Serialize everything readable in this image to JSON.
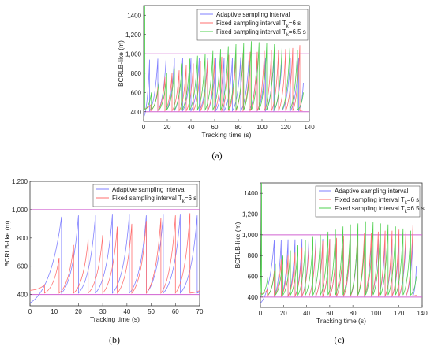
{
  "charts": [
    {
      "type": "line",
      "panel_label": "(a)",
      "xlabel": "Tracking time (s)",
      "ylabel": "BCRLB-like (m)",
      "xlim": [
        0,
        140
      ],
      "ylim": [
        300,
        1500
      ],
      "xticks": [
        "0",
        "20",
        "40",
        "60",
        "80",
        "100",
        "120",
        "140"
      ],
      "yticks": [
        "400",
        "600",
        "800",
        "1,000",
        "1,200",
        "1400"
      ],
      "ytick_values": [
        400,
        600,
        800,
        1000,
        1200,
        1400
      ],
      "reference_lines": [
        1000,
        400
      ],
      "reference_color": "#d060d0",
      "legend": [
        {
          "label": "Adaptive sampling interval",
          "sub": "",
          "suffix": "",
          "color": "#7f7fff"
        },
        {
          "label": "Fixed sampling interval T",
          "sub": "k",
          "suffix": "=6 s",
          "color": "#ff6f6f"
        },
        {
          "label": "Fixed sampling interval T",
          "sub": "k",
          "suffix": "=6.5 s",
          "color": "#4fd04f"
        }
      ],
      "series": [
        {
          "color": "#7f7fff",
          "start_time": 0,
          "start_value": 340,
          "peaks": [
            [
              5,
              940
            ],
            [
              12,
              950
            ],
            [
              19,
              955
            ],
            [
              26,
              960
            ],
            [
              33,
              960
            ],
            [
              40,
              955
            ],
            [
              47,
              960
            ],
            [
              54,
              960
            ],
            [
              61,
              960
            ],
            [
              68,
              960
            ],
            [
              75,
              960
            ],
            [
              82,
              965
            ],
            [
              89,
              960
            ],
            [
              96,
              960
            ],
            [
              103,
              960
            ],
            [
              110,
              960
            ],
            [
              117,
              960
            ],
            [
              124,
              960
            ],
            [
              131,
              960
            ]
          ],
          "reset_value": 410,
          "end": [
            135,
            700
          ]
        },
        {
          "color": "#ff6f6f",
          "start_time": 0,
          "start_value": 430,
          "peaks": [
            [
              6,
              470
            ],
            [
              12,
              650
            ],
            [
              18,
              760
            ],
            [
              24,
              800
            ],
            [
              30,
              830
            ],
            [
              36,
              880
            ],
            [
              42,
              900
            ],
            [
              48,
              920
            ],
            [
              54,
              940
            ],
            [
              60,
              960
            ],
            [
              66,
              970
            ],
            [
              72,
              990
            ],
            [
              78,
              1000
            ],
            [
              84,
              1010
            ],
            [
              90,
              1020
            ],
            [
              96,
              1020
            ],
            [
              102,
              1030
            ],
            [
              108,
              1040
            ],
            [
              114,
              1040
            ],
            [
              120,
              1050
            ],
            [
              126,
              1060
            ],
            [
              132,
              1090
            ]
          ],
          "reset_value": 410,
          "end": [
            135,
            420
          ]
        },
        {
          "color": "#4fd04f",
          "start_time": 0,
          "start_value": 450,
          "peaks": [
            [
              1,
              1500
            ],
            [
              6.5,
              600
            ],
            [
              13,
              720
            ],
            [
              19.5,
              800
            ],
            [
              26,
              850
            ],
            [
              32.5,
              900
            ],
            [
              39,
              950
            ],
            [
              45.5,
              980
            ],
            [
              52,
              1000
            ],
            [
              58.5,
              1030
            ],
            [
              65,
              1050
            ],
            [
              71.5,
              1080
            ],
            [
              78,
              1100
            ],
            [
              84.5,
              1110
            ],
            [
              91,
              1130
            ],
            [
              97.5,
              1120
            ],
            [
              104,
              1110
            ],
            [
              110.5,
              1100
            ],
            [
              117,
              1080
            ],
            [
              123.5,
              1060
            ],
            [
              130,
              1040
            ]
          ],
          "reset_value": 420,
          "end": [
            135,
            600
          ]
        }
      ]
    },
    {
      "type": "line",
      "panel_label": "(b)",
      "xlabel": "Tracking time (s)",
      "ylabel": "BCRLB-like (m)",
      "xlim": [
        0,
        70
      ],
      "ylim": [
        320,
        1200
      ],
      "xticks": [
        "0",
        "10",
        "20",
        "30",
        "40",
        "50",
        "60",
        "70"
      ],
      "yticks": [
        "400",
        "600",
        "800",
        "1,000",
        "1,200"
      ],
      "ytick_values": [
        400,
        600,
        800,
        1000,
        1200
      ],
      "reference_lines": [
        1000,
        400
      ],
      "reference_color": "#d060d0",
      "legend": [
        {
          "label": "Adaptive sampling interval",
          "sub": "",
          "suffix": "",
          "color": "#7f7fff"
        },
        {
          "label": "Fixed sampling interval T",
          "sub": "k",
          "suffix": "=6 s",
          "color": "#ff6f6f"
        }
      ],
      "series": [
        {
          "color": "#7f7fff",
          "start_time": 0,
          "start_value": 340,
          "peaks": [
            [
              13,
              950
            ],
            [
              20,
              960
            ],
            [
              27,
              960
            ],
            [
              34,
              965
            ],
            [
              41,
              965
            ],
            [
              48,
              960
            ],
            [
              55,
              965
            ],
            [
              62,
              965
            ],
            [
              69,
              960
            ]
          ],
          "reset_value": 410,
          "end": [
            70,
            430
          ]
        },
        {
          "color": "#ff6f6f",
          "start_time": 0,
          "start_value": 430,
          "peaks": [
            [
              6,
              470
            ],
            [
              12,
              660
            ],
            [
              18,
              750
            ],
            [
              24,
              790
            ],
            [
              30,
              820
            ],
            [
              36,
              880
            ],
            [
              42,
              900
            ],
            [
              48,
              920
            ],
            [
              54,
              940
            ],
            [
              60,
              960
            ],
            [
              66,
              975
            ]
          ],
          "reset_value": 410,
          "end": [
            70,
            430
          ]
        }
      ]
    },
    {
      "type": "line",
      "panel_label": "(c)",
      "xlabel": "Tracking time (s)",
      "ylabel": "BCRLB-like (m)",
      "xlim": [
        0,
        140
      ],
      "ylim": [
        300,
        1500
      ],
      "xticks": [
        "0",
        "20",
        "40",
        "60",
        "80",
        "100",
        "120",
        "140"
      ],
      "yticks": [
        "400",
        "600",
        "800",
        "1,000",
        "1,200",
        "1400"
      ],
      "ytick_values": [
        400,
        600,
        800,
        1000,
        1200,
        1400
      ],
      "reference_lines": [
        1000,
        400
      ],
      "reference_color": "#d060d0",
      "legend": [
        {
          "label": "Adaptive sampling interval",
          "sub": "",
          "suffix": "",
          "color": "#7f7fff"
        },
        {
          "label": "Fixed sampling interval T",
          "sub": "k",
          "suffix": "=6 s",
          "color": "#ff6f6f"
        },
        {
          "label": "Fixed sampling interval T",
          "sub": "k",
          "suffix": "=6.5 s",
          "color": "#4fd04f"
        }
      ],
      "series": [
        {
          "color": "#7f7fff",
          "start_time": 0,
          "start_value": 340,
          "peaks": [
            [
              12,
              950
            ],
            [
              18,
              950
            ],
            [
              24,
              955
            ],
            [
              30,
              955
            ],
            [
              36,
              960
            ],
            [
              42,
              960
            ],
            [
              48,
              960
            ],
            [
              54,
              960
            ],
            [
              60,
              960
            ],
            [
              66,
              960
            ],
            [
              72,
              960
            ],
            [
              78,
              960
            ],
            [
              84,
              960
            ],
            [
              90,
              960
            ],
            [
              96,
              960
            ],
            [
              102,
              960
            ],
            [
              108,
              960
            ],
            [
              114,
              960
            ],
            [
              120,
              960
            ],
            [
              126,
              960
            ],
            [
              132,
              960
            ]
          ],
          "reset_value": 410,
          "end": [
            135,
            700
          ]
        },
        {
          "color": "#ff6f6f",
          "start_time": 0,
          "start_value": 430,
          "peaks": [
            [
              6,
              470
            ],
            [
              12,
              650
            ],
            [
              18,
              760
            ],
            [
              24,
              800
            ],
            [
              30,
              830
            ],
            [
              36,
              880
            ],
            [
              42,
              900
            ],
            [
              48,
              920
            ],
            [
              54,
              940
            ],
            [
              60,
              960
            ],
            [
              66,
              970
            ],
            [
              72,
              990
            ],
            [
              78,
              1000
            ],
            [
              84,
              1010
            ],
            [
              90,
              1020
            ],
            [
              96,
              1020
            ],
            [
              102,
              1030
            ],
            [
              108,
              1040
            ],
            [
              114,
              1040
            ],
            [
              120,
              1050
            ],
            [
              126,
              1060
            ],
            [
              132,
              1090
            ]
          ],
          "reset_value": 410,
          "end": [
            135,
            420
          ]
        },
        {
          "color": "#4fd04f",
          "start_time": 0,
          "start_value": 450,
          "peaks": [
            [
              1,
              1500
            ],
            [
              6.5,
              600
            ],
            [
              13,
              720
            ],
            [
              19.5,
              800
            ],
            [
              26,
              850
            ],
            [
              32.5,
              900
            ],
            [
              39,
              950
            ],
            [
              45.5,
              980
            ],
            [
              52,
              1000
            ],
            [
              58.5,
              1030
            ],
            [
              65,
              1050
            ],
            [
              71.5,
              1080
            ],
            [
              78,
              1100
            ],
            [
              84.5,
              1110
            ],
            [
              91,
              1130
            ],
            [
              97.5,
              1120
            ],
            [
              104,
              1110
            ],
            [
              110.5,
              1100
            ],
            [
              117,
              1080
            ],
            [
              123.5,
              1060
            ],
            [
              130,
              1040
            ]
          ],
          "reset_value": 420,
          "end": [
            135,
            600
          ]
        }
      ]
    }
  ]
}
